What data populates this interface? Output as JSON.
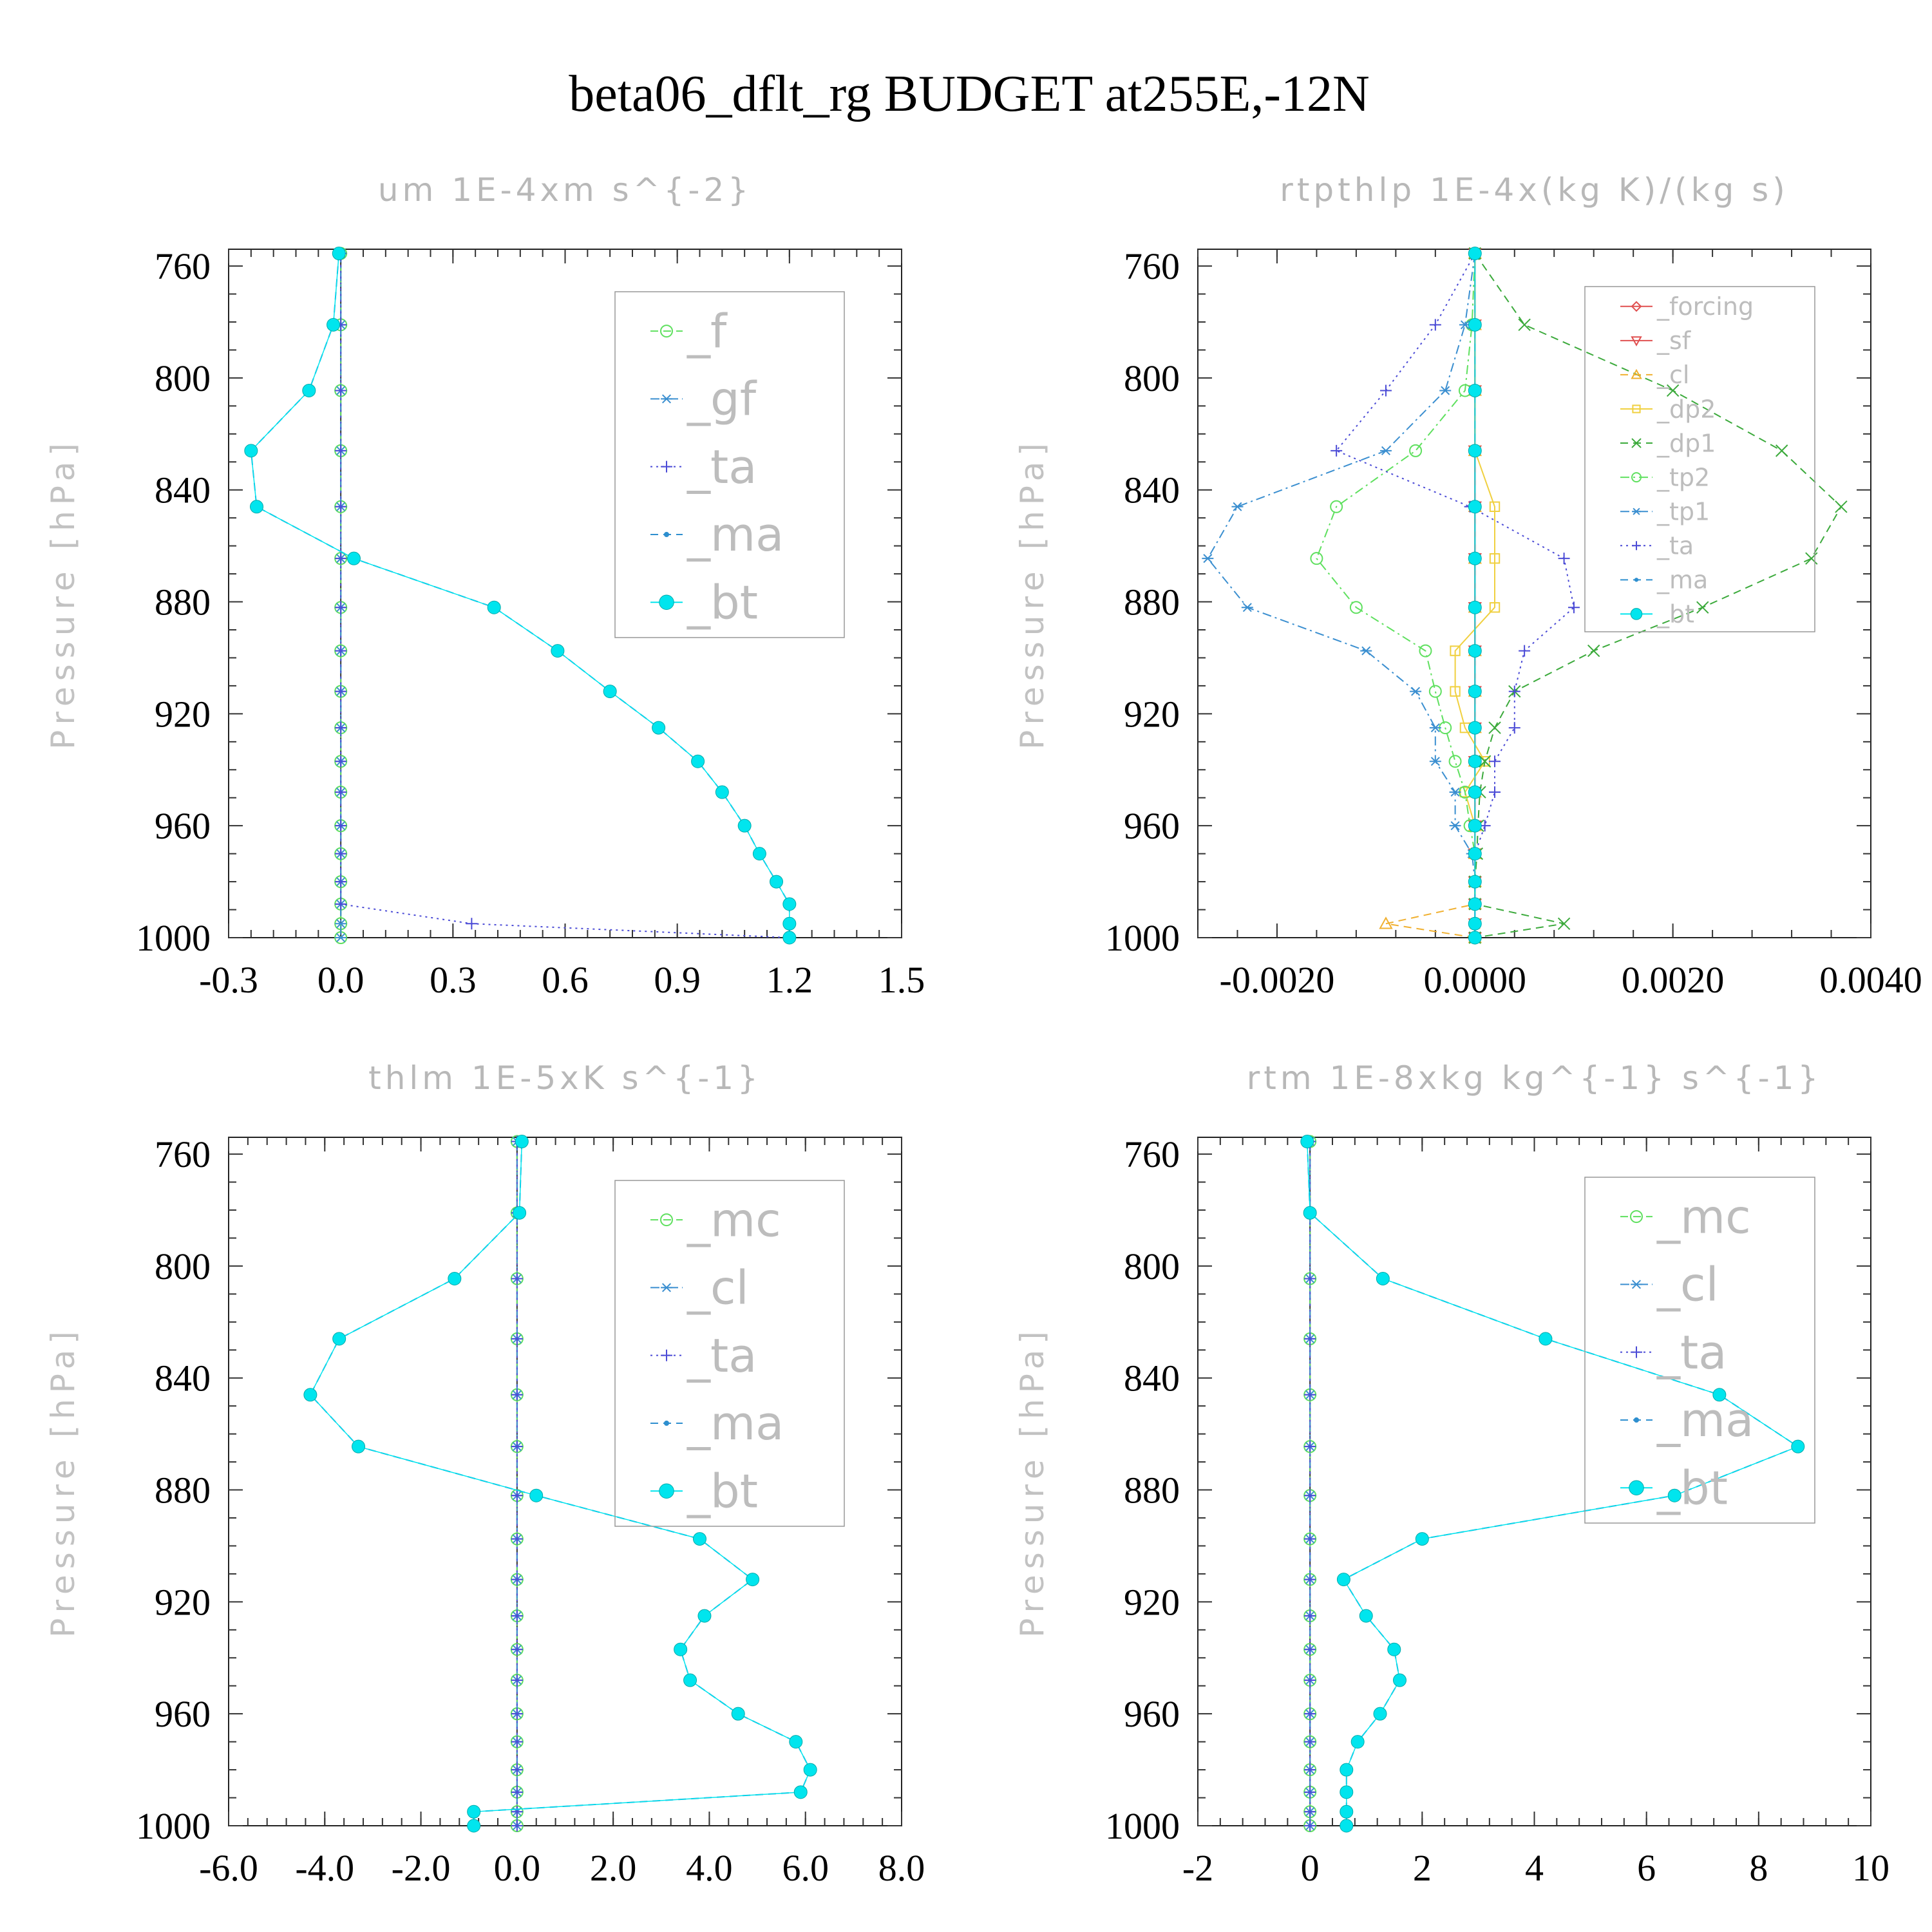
{
  "title": "beta06_dflt_rg  BUDGET at255E,-12N",
  "chart_data": [
    {
      "type": "line",
      "title": "um  1E-4xm s^{-2}",
      "ylabel": "Pressure [hPa]",
      "xlabel": "",
      "xlim": [
        -0.3,
        1.5
      ],
      "ylim": [
        1000,
        754
      ],
      "xticks": [
        "-0.3",
        "0.0",
        "0.3",
        "0.6",
        "0.9",
        "1.2",
        "1.5"
      ],
      "yticks": [
        "760",
        "800",
        "840",
        "880",
        "920",
        "960",
        "1000"
      ],
      "levels": [
        755.5,
        781,
        804.5,
        826,
        846,
        864.5,
        882,
        897.5,
        912,
        925,
        937,
        948,
        960,
        970,
        980,
        988,
        995,
        1000
      ],
      "legend_position": "top-right",
      "series": [
        {
          "name": "_f",
          "color": "#5fe05f",
          "marker": "circle",
          "dash": "dash",
          "values": [
            0,
            0,
            0,
            0,
            0,
            0,
            0,
            0,
            0,
            0,
            0,
            0,
            0,
            0,
            0,
            0,
            0,
            0
          ]
        },
        {
          "name": "_gf",
          "color": "#3b8fd0",
          "marker": "asterisk",
          "dash": "dashdot",
          "values": [
            0,
            0,
            0,
            0,
            0,
            0,
            0,
            0,
            0,
            0,
            0,
            0,
            0,
            0,
            0,
            0,
            0,
            0
          ]
        },
        {
          "name": "_ta",
          "color": "#4b4bd6",
          "marker": "plus",
          "dash": "dot",
          "values": [
            0,
            0,
            0,
            0,
            0,
            0,
            0,
            0,
            0,
            0,
            0,
            0,
            0,
            0,
            0,
            0,
            0.35,
            1.2
          ]
        },
        {
          "name": "_ma",
          "color": "#2e8fcf",
          "marker": "dot",
          "dash": "dash",
          "values": [
            -0.005,
            -0.02,
            -0.085,
            -0.24,
            -0.225,
            0.035,
            0.41,
            0.58,
            0.72,
            0.85,
            0.955,
            1.02,
            1.08,
            1.12,
            1.165,
            1.2,
            1.2,
            1.2
          ]
        },
        {
          "name": "_bt",
          "color": "#00e5ee",
          "marker": "filled",
          "dash": "solid",
          "values": [
            -0.005,
            -0.02,
            -0.085,
            -0.24,
            -0.225,
            0.035,
            0.41,
            0.58,
            0.72,
            0.85,
            0.955,
            1.02,
            1.08,
            1.12,
            1.165,
            1.2,
            1.2,
            1.2
          ]
        }
      ]
    },
    {
      "type": "line",
      "title": "rtpthlp  1E-4x(kg K)/(kg s)",
      "ylabel": "Pressure [hPa]",
      "xlabel": "",
      "xlim": [
        -0.0028,
        0.004
      ],
      "ylim": [
        1000,
        754
      ],
      "xticks": [
        "-0.0020",
        "0.0000",
        "0.0020",
        "0.0040"
      ],
      "yticks": [
        "760",
        "800",
        "840",
        "880",
        "920",
        "960",
        "1000"
      ],
      "levels": [
        755.5,
        781,
        804.5,
        826,
        846,
        864.5,
        882,
        897.5,
        912,
        925,
        937,
        948,
        960,
        970,
        980,
        988,
        995,
        1000
      ],
      "legend_position": "top-right",
      "series": [
        {
          "name": "_forcing",
          "color": "#e05050",
          "marker": "diamond",
          "dash": "solid",
          "values": [
            0,
            0,
            0,
            0,
            0,
            0,
            0,
            0,
            0,
            0,
            0,
            0,
            0,
            0,
            0,
            0,
            0,
            0
          ]
        },
        {
          "name": "_sf",
          "color": "#e05050",
          "marker": "triangle-down",
          "dash": "solid",
          "values": [
            0,
            0,
            0,
            0,
            0,
            0,
            0,
            0,
            0,
            0,
            0,
            0,
            0,
            0,
            0,
            0,
            0,
            0
          ]
        },
        {
          "name": "_cl",
          "color": "#f0b030",
          "marker": "triangle-up",
          "dash": "dash",
          "values": [
            0,
            0,
            0,
            0,
            0,
            0,
            0,
            0,
            0,
            0,
            0,
            0,
            0,
            0,
            0,
            0,
            -0.0009,
            0
          ]
        },
        {
          "name": "_dp2",
          "color": "#f0d040",
          "marker": "square",
          "dash": "solid",
          "values": [
            0,
            0,
            0,
            0,
            0.0002,
            0.0002,
            0.0002,
            -0.0002,
            -0.0002,
            -0.0001,
            0.0001,
            -0.0001,
            0,
            0,
            0,
            0,
            0,
            0
          ]
        },
        {
          "name": "_dp1",
          "color": "#3caa3c",
          "marker": "cross",
          "dash": "dash",
          "values": [
            0,
            0.0005,
            0.002,
            0.0031,
            0.0037,
            0.0034,
            0.0023,
            0.0012,
            0.0004,
            0.0002,
            0.0001,
            5e-05,
            3e-05,
            2e-05,
            0,
            0,
            0.0009,
            0
          ]
        },
        {
          "name": "_tp2",
          "color": "#5fe05f",
          "marker": "circle",
          "dash": "dashdot",
          "values": [
            0,
            -3e-05,
            -0.0001,
            -0.0006,
            -0.0014,
            -0.0016,
            -0.0012,
            -0.0005,
            -0.0004,
            -0.0003,
            -0.0002,
            -0.0001,
            -5e-05,
            0,
            0,
            0,
            0,
            0
          ]
        },
        {
          "name": "_tp1",
          "color": "#3b8fd0",
          "marker": "asterisk",
          "dash": "dashdot",
          "values": [
            0,
            -0.0001,
            -0.0003,
            -0.0009,
            -0.0024,
            -0.0027,
            -0.0023,
            -0.0011,
            -0.0006,
            -0.0004,
            -0.0004,
            -0.0002,
            -0.0002,
            -3e-05,
            0,
            0,
            0,
            0
          ]
        },
        {
          "name": "_ta",
          "color": "#4b4bd6",
          "marker": "plus",
          "dash": "dot",
          "values": [
            0,
            -0.0004,
            -0.0009,
            -0.0014,
            -5e-05,
            0.0009,
            0.001,
            0.0005,
            0.0004,
            0.0004,
            0.0002,
            0.0002,
            0.0001,
            0,
            0,
            0,
            0,
            0
          ]
        },
        {
          "name": "_ma",
          "color": "#2e8fcf",
          "marker": "dot",
          "dash": "dash",
          "values": [
            0,
            0,
            0,
            0,
            0,
            0,
            0,
            0,
            0,
            0,
            0,
            0,
            0,
            0,
            0,
            0,
            0,
            0
          ]
        },
        {
          "name": "_bt",
          "color": "#00e5ee",
          "marker": "filled",
          "dash": "solid",
          "values": [
            0,
            0,
            0,
            0,
            0,
            0,
            0,
            0,
            0,
            0,
            0,
            0,
            0,
            0,
            0,
            0,
            0,
            0
          ]
        }
      ]
    },
    {
      "type": "line",
      "title": "thlm  1E-5xK s^{-1}",
      "ylabel": "Pressure [hPa]",
      "xlabel": "",
      "xlim": [
        -6,
        8
      ],
      "ylim": [
        1000,
        754
      ],
      "xticks": [
        "-6.0",
        "-4.0",
        "-2.0",
        "0.0",
        "2.0",
        "4.0",
        "6.0",
        "8.0"
      ],
      "yticks": [
        "760",
        "800",
        "840",
        "880",
        "920",
        "960",
        "1000"
      ],
      "levels": [
        755.5,
        781,
        804.5,
        826,
        846,
        864.5,
        882,
        897.5,
        912,
        925,
        937,
        948,
        960,
        970,
        980,
        988,
        995,
        1000
      ],
      "legend_position": "top-right",
      "series": [
        {
          "name": "_mc",
          "color": "#5fe05f",
          "marker": "circle",
          "dash": "dash",
          "values": [
            0,
            0,
            0,
            0,
            0,
            0,
            0,
            0,
            0,
            0,
            0,
            0,
            0,
            0,
            0,
            0,
            0,
            0
          ]
        },
        {
          "name": "_cl",
          "color": "#3b8fd0",
          "marker": "asterisk",
          "dash": "dashdot",
          "values": [
            0,
            0,
            0,
            0,
            0,
            0,
            0,
            0,
            0,
            0,
            0,
            0,
            0,
            0,
            0,
            0,
            0,
            0
          ]
        },
        {
          "name": "_ta",
          "color": "#4b4bd6",
          "marker": "plus",
          "dash": "dot",
          "values": [
            0,
            0,
            0,
            0,
            0,
            0,
            0,
            0,
            0,
            0,
            0,
            0,
            0,
            0,
            0,
            0,
            0,
            0
          ]
        },
        {
          "name": "_ma",
          "color": "#2e8fcf",
          "marker": "dot",
          "dash": "dash",
          "values": [
            0.1,
            0.05,
            -1.3,
            -3.7,
            -4.3,
            -3.3,
            0.4,
            3.8,
            4.9,
            3.9,
            3.4,
            3.6,
            4.6,
            5.8,
            6.1,
            5.9,
            -0.9,
            -0.9
          ]
        },
        {
          "name": "_bt",
          "color": "#00e5ee",
          "marker": "filled",
          "dash": "solid",
          "values": [
            0.1,
            0.05,
            -1.3,
            -3.7,
            -4.3,
            -3.3,
            0.4,
            3.8,
            4.9,
            3.9,
            3.4,
            3.6,
            4.6,
            5.8,
            6.1,
            5.9,
            -0.9,
            -0.9
          ]
        }
      ]
    },
    {
      "type": "line",
      "title": "rtm  1E-8xkg kg^{-1} s^{-1}",
      "ylabel": "Pressure [hPa]",
      "xlabel": "",
      "xlim": [
        -2,
        10
      ],
      "ylim": [
        1000,
        754
      ],
      "xticks": [
        "-2",
        "0",
        "2",
        "4",
        "6",
        "8",
        "10"
      ],
      "yticks": [
        "760",
        "800",
        "840",
        "880",
        "920",
        "960",
        "1000"
      ],
      "levels": [
        755.5,
        781,
        804.5,
        826,
        846,
        864.5,
        882,
        897.5,
        912,
        925,
        937,
        948,
        960,
        970,
        980,
        988,
        995,
        1000
      ],
      "legend_position": "top-right",
      "series": [
        {
          "name": "_mc",
          "color": "#5fe05f",
          "marker": "circle",
          "dash": "dash",
          "values": [
            0,
            0,
            0,
            0,
            0,
            0,
            0,
            0,
            0,
            0,
            0,
            0,
            0,
            0,
            0,
            0,
            0,
            0
          ]
        },
        {
          "name": "_cl",
          "color": "#3b8fd0",
          "marker": "asterisk",
          "dash": "dashdot",
          "values": [
            0,
            0,
            0,
            0,
            0,
            0,
            0,
            0,
            0,
            0,
            0,
            0,
            0,
            0,
            0,
            0,
            0,
            0
          ]
        },
        {
          "name": "_ta",
          "color": "#4b4bd6",
          "marker": "plus",
          "dash": "dot",
          "values": [
            0,
            0,
            0,
            0,
            0,
            0,
            0,
            0,
            0,
            0,
            0,
            0,
            0,
            0,
            0,
            0,
            0,
            0
          ]
        },
        {
          "name": "_ma",
          "color": "#2e8fcf",
          "marker": "dot",
          "dash": "dash",
          "values": [
            -0.05,
            0,
            1.3,
            4.2,
            7.3,
            8.7,
            6.5,
            2,
            0.6,
            1,
            1.5,
            1.6,
            1.25,
            0.85,
            0.65,
            0.65,
            0.65,
            0.65
          ]
        },
        {
          "name": "_bt",
          "color": "#00e5ee",
          "marker": "filled",
          "dash": "solid",
          "values": [
            -0.05,
            0,
            1.3,
            4.2,
            7.3,
            8.7,
            6.5,
            2,
            0.6,
            1,
            1.5,
            1.6,
            1.25,
            0.85,
            0.65,
            0.65,
            0.65,
            0.65
          ]
        }
      ]
    }
  ]
}
